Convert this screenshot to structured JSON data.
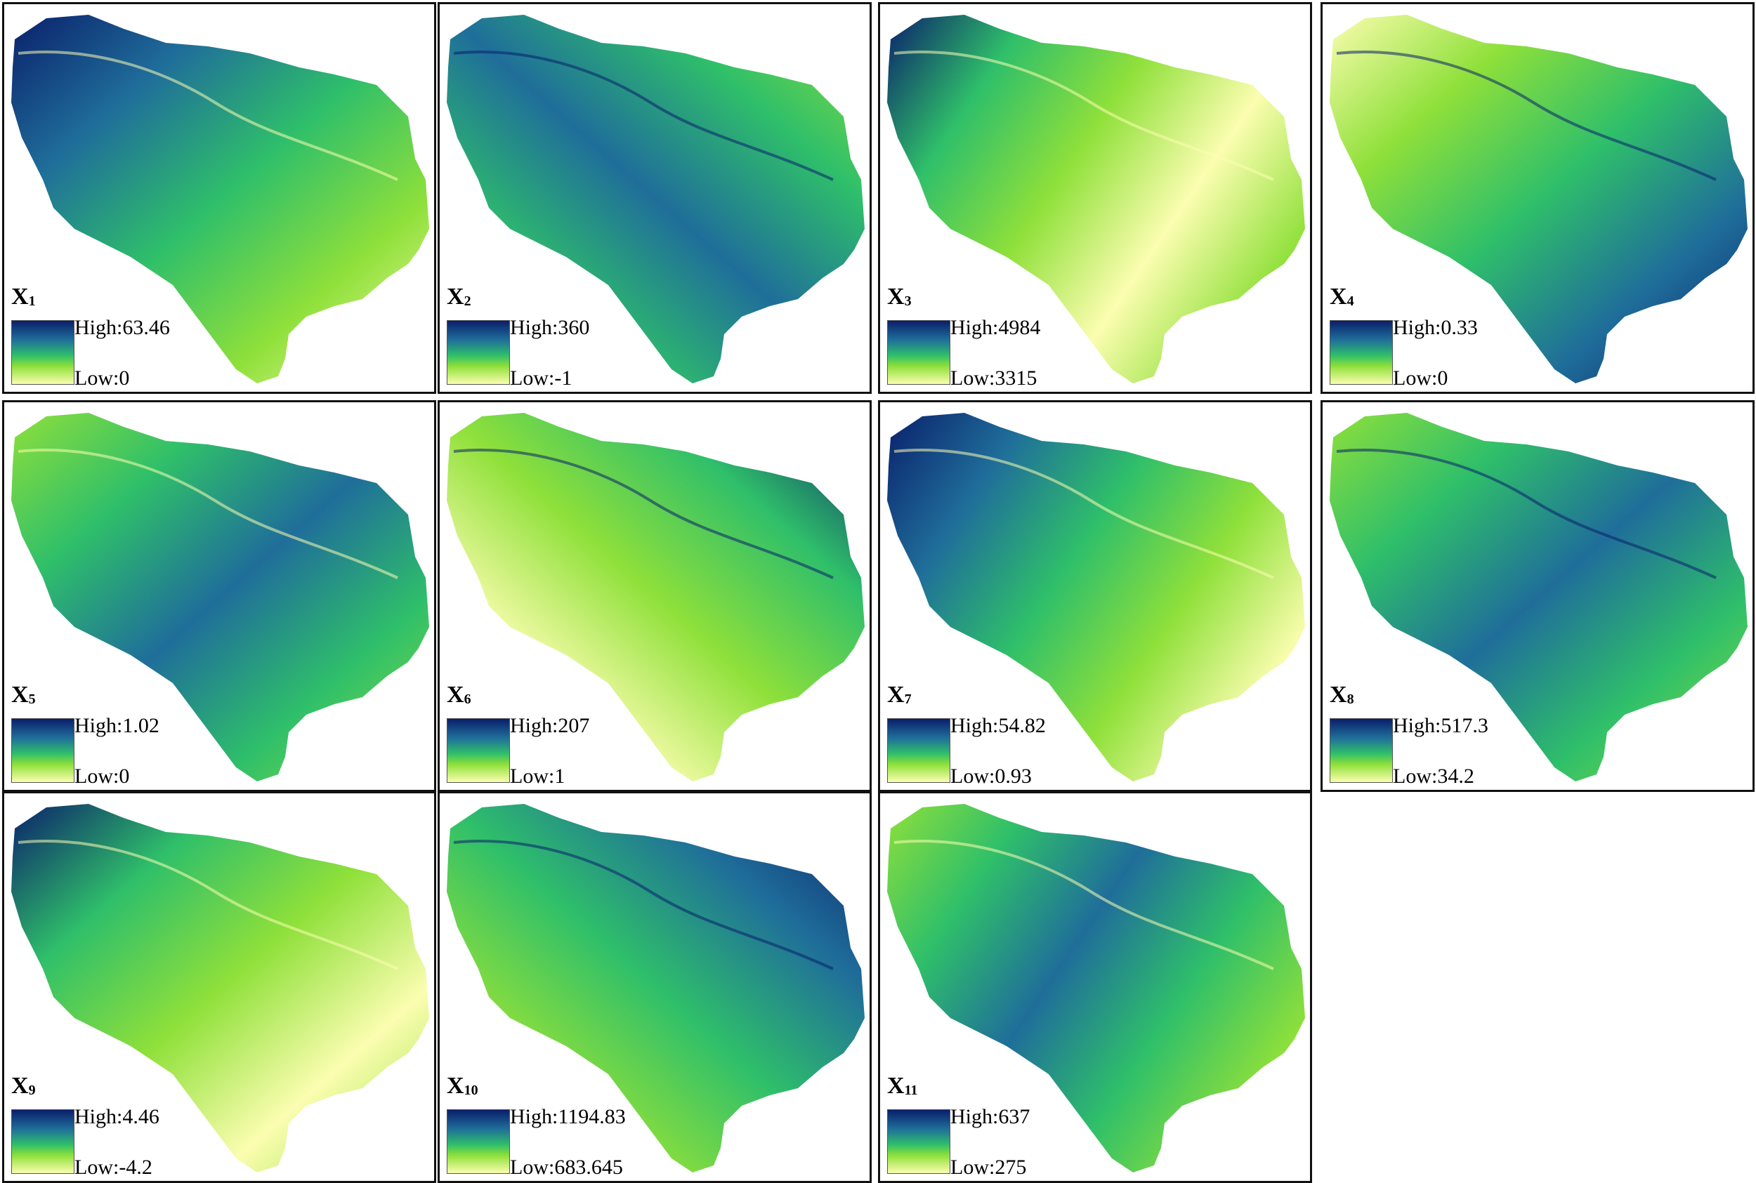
{
  "figure": {
    "panels": [
      {
        "label_main": "X",
        "label_sub": "1",
        "high": "High:63.46",
        "low": "Low:0"
      },
      {
        "label_main": "X",
        "label_sub": "2",
        "high": "High:360",
        "low": "Low:-1"
      },
      {
        "label_main": "X",
        "label_sub": "3",
        "high": "High:4984",
        "low": "Low:3315"
      },
      {
        "label_main": "X",
        "label_sub": "4",
        "high": "High:0.33",
        "low": "Low:0"
      },
      {
        "label_main": "X",
        "label_sub": "5",
        "high": "High:1.02",
        "low": "Low:0"
      },
      {
        "label_main": "X",
        "label_sub": "6",
        "high": "High:207",
        "low": "Low:1"
      },
      {
        "label_main": "X",
        "label_sub": "7",
        "high": "High:54.82",
        "low": "Low:0.93"
      },
      {
        "label_main": "X",
        "label_sub": "8",
        "high": "High:517.3",
        "low": "Low:34.2"
      },
      {
        "label_main": "X",
        "label_sub": "9",
        "high": "High:4.46",
        "low": "Low:-4.2"
      },
      {
        "label_main": "X",
        "label_sub": "10",
        "high": "High:1194.83",
        "low": "Low:683.645"
      },
      {
        "label_main": "X",
        "label_sub": "11",
        "high": "High:637",
        "low": "Low:275"
      }
    ],
    "colors": {
      "high": "#0a1f6b",
      "mid_high": "#1f6e9a",
      "mid": "#2fbf6a",
      "mid_low": "#8fe03a",
      "low": "#fbfdb0",
      "border": "#111111"
    },
    "icons": {
      "map_region": "basin-outline-shape",
      "legend": "vertical-gradient-bar"
    }
  }
}
